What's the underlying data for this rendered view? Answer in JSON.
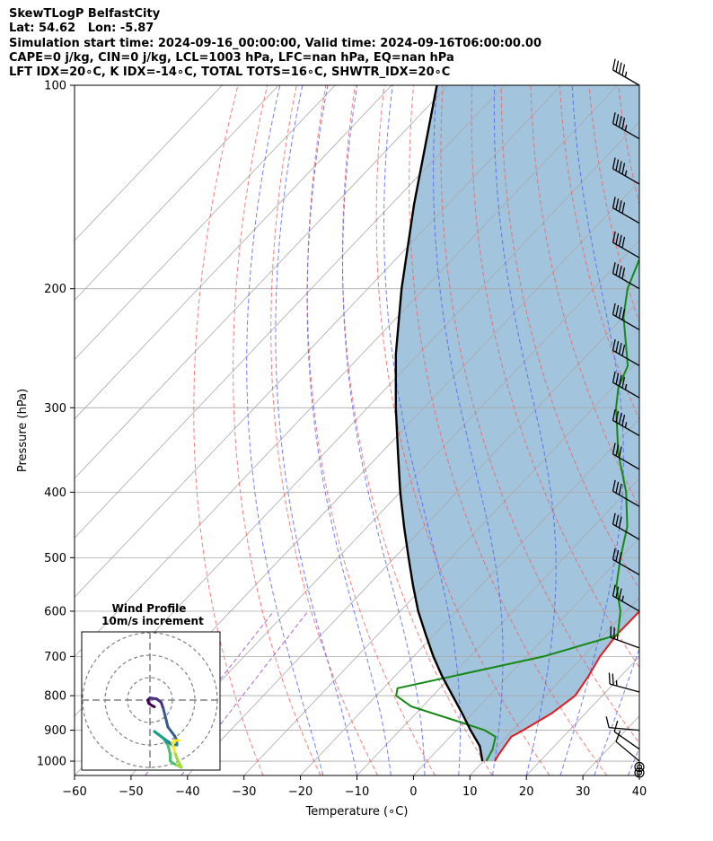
{
  "header": {
    "line1": "SkewTLogP BelfastCity",
    "line2": "Lat: 54.62   Lon: -5.87",
    "line3": "Simulation start time: 2024-09-16_00:00:00, Valid time: 2024-09-16T06:00:00.00",
    "line4": "CAPE=0 j/kg, CIN=0 j/kg, LCL=1003 hPa, LFC=nan hPa, EQ=nan hPa",
    "line5": "LFT IDX=20∘C, K IDX=-14∘C, TOTAL TOTS=16∘C, SHWTR_IDX=20∘C"
  },
  "chart_data": {
    "type": "line",
    "subtype": "skew-t log-p",
    "xlabel": "Temperature (∘C)",
    "ylabel": "Pressure (hPa)",
    "xlim": [
      -60,
      40
    ],
    "ylim": [
      1050,
      100
    ],
    "yscale": "log",
    "grid": true,
    "x_ticks": [
      "−60",
      "−50",
      "−40",
      "−30",
      "−20",
      "−10",
      "0",
      "10",
      "20",
      "30",
      "40"
    ],
    "y_ticks": [
      "100",
      "200",
      "300",
      "400",
      "500",
      "600",
      "700",
      "800",
      "900",
      "1000"
    ],
    "colors": {
      "temperature": "#e8191c",
      "dewpoint": "#148a14",
      "parcel": "#000000",
      "cape_fill": "#a2c4dd",
      "dry_adiabats": "#f06060",
      "moist_adiabats": "#5060f0",
      "mixing_ratio": "#9040c0",
      "isotherms": "#a9a9a9"
    },
    "series": [
      {
        "name": "",
        "role": "temperature",
        "points": [
          [
            1000,
            12
          ],
          [
            980,
            11.6
          ],
          [
            950,
            11.2
          ],
          [
            920,
            10.8
          ],
          [
            900,
            11.8
          ],
          [
            850,
            14
          ],
          [
            800,
            15.2
          ],
          [
            750,
            14.3
          ],
          [
            700,
            13
          ],
          [
            650,
            12.3
          ],
          [
            600,
            12.4
          ],
          [
            550,
            11.8
          ],
          [
            500,
            10.5
          ],
          [
            450,
            9
          ],
          [
            400,
            6.5
          ],
          [
            350,
            2.8
          ],
          [
            300,
            -3.5
          ],
          [
            250,
            -13.5
          ],
          [
            225,
            -19
          ],
          [
            200,
            -24.5
          ],
          [
            175,
            -29.5
          ],
          [
            160,
            -30
          ],
          [
            150,
            -29
          ],
          [
            140,
            -29
          ],
          [
            130,
            -30.5
          ],
          [
            120,
            -31
          ],
          [
            110,
            -32
          ],
          [
            100,
            -34
          ]
        ]
      },
      {
        "name": "",
        "role": "dewpoint",
        "points": [
          [
            1000,
            10.5
          ],
          [
            960,
            9.6
          ],
          [
            920,
            8
          ],
          [
            900,
            5
          ],
          [
            870,
            -2
          ],
          [
            830,
            -12
          ],
          [
            800,
            -16.5
          ],
          [
            780,
            -17.5
          ],
          [
            700,
            3
          ],
          [
            650,
            12.5
          ],
          [
            600,
            9
          ],
          [
            550,
            4
          ],
          [
            500,
            0
          ],
          [
            450,
            -4
          ],
          [
            400,
            -10
          ],
          [
            350,
            -18
          ],
          [
            300,
            -26
          ],
          [
            280,
            -29
          ],
          [
            260,
            -31
          ],
          [
            220,
            -40
          ],
          [
            200,
            -44
          ],
          [
            180,
            -47
          ],
          [
            160,
            -50
          ],
          [
            150,
            -51
          ],
          [
            140,
            -52
          ],
          [
            130,
            -54
          ],
          [
            120,
            -57
          ],
          [
            110,
            -60
          ],
          [
            100,
            -63
          ]
        ]
      },
      {
        "name": "",
        "role": "parcel",
        "points": [
          [
            1000,
            9.8
          ],
          [
            950,
            6.8
          ],
          [
            900,
            2.5
          ],
          [
            850,
            -1.8
          ],
          [
            800,
            -6.5
          ],
          [
            750,
            -11.5
          ],
          [
            700,
            -16.5
          ],
          [
            650,
            -21.5
          ],
          [
            600,
            -26.8
          ],
          [
            550,
            -32
          ],
          [
            500,
            -37.5
          ],
          [
            450,
            -43.5
          ],
          [
            400,
            -50
          ],
          [
            350,
            -57
          ],
          [
            300,
            -65
          ],
          [
            250,
            -74
          ],
          [
            200,
            -84
          ],
          [
            150,
            -96
          ],
          [
            100,
            -112
          ]
        ]
      }
    ],
    "wind_barbs": [
      {
        "p": 100,
        "speed": 35,
        "dir": 300
      },
      {
        "p": 120,
        "speed": 35,
        "dir": 300
      },
      {
        "p": 140,
        "speed": 35,
        "dir": 300
      },
      {
        "p": 160,
        "speed": 40,
        "dir": 300
      },
      {
        "p": 180,
        "speed": 40,
        "dir": 300
      },
      {
        "p": 200,
        "speed": 40,
        "dir": 300
      },
      {
        "p": 230,
        "speed": 40,
        "dir": 300
      },
      {
        "p": 260,
        "speed": 40,
        "dir": 300
      },
      {
        "p": 290,
        "speed": 35,
        "dir": 300
      },
      {
        "p": 330,
        "speed": 35,
        "dir": 300
      },
      {
        "p": 370,
        "speed": 30,
        "dir": 300
      },
      {
        "p": 420,
        "speed": 30,
        "dir": 300
      },
      {
        "p": 470,
        "speed": 30,
        "dir": 300
      },
      {
        "p": 530,
        "speed": 30,
        "dir": 300
      },
      {
        "p": 600,
        "speed": 25,
        "dir": 300
      },
      {
        "p": 680,
        "speed": 15,
        "dir": 290
      },
      {
        "p": 790,
        "speed": 15,
        "dir": 285
      },
      {
        "p": 900,
        "speed": 10,
        "dir": 275
      },
      {
        "p": 960,
        "speed": 10,
        "dir": 305
      },
      {
        "p": 1000,
        "speed": 10,
        "dir": 310
      },
      {
        "p": 1020,
        "speed": 0,
        "dir": 0
      },
      {
        "p": 1040,
        "speed": 0,
        "dir": 0
      }
    ],
    "hodograph": {
      "title": "Wind Profile",
      "subtitle": "10m/s increment",
      "rings_ms": [
        10,
        20,
        30
      ],
      "path_uv": [
        [
          2,
          -3
        ],
        [
          1,
          -2.5
        ],
        [
          -0.5,
          -1.5
        ],
        [
          -1,
          0
        ],
        [
          0,
          1
        ],
        [
          3,
          0.5
        ],
        [
          5,
          -1
        ],
        [
          6,
          -4
        ],
        [
          7,
          -8
        ],
        [
          8,
          -12
        ],
        [
          11,
          -16
        ],
        [
          12,
          -18
        ],
        [
          12,
          -20
        ],
        [
          10,
          -20
        ],
        [
          6,
          -17
        ],
        [
          2,
          -14
        ],
        [
          6,
          -17
        ],
        [
          8,
          -20
        ],
        [
          9,
          -24
        ],
        [
          9,
          -27
        ],
        [
          10,
          -28
        ],
        [
          12,
          -29
        ],
        [
          14,
          -30
        ],
        [
          12,
          -26
        ],
        [
          11,
          -23
        ],
        [
          10,
          -19
        ],
        [
          11,
          -18
        ],
        [
          13,
          -18
        ]
      ]
    }
  }
}
